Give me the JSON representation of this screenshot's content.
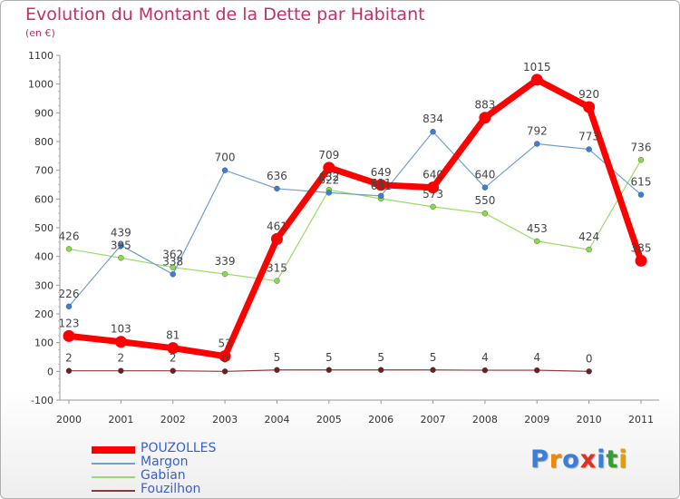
{
  "header": {
    "title": "Evolution du Montant de la Dette par Habitant",
    "subtitle": "(en €)"
  },
  "logo": {
    "text": "Proxiti",
    "colors": [
      "#3a7fd5",
      "#f08a00",
      "#3a7fd5",
      "#e03020",
      "#3a7fd5",
      "#30a030",
      "#e0a000"
    ]
  },
  "chart_data": {
    "type": "line",
    "x": [
      "2000",
      "2001",
      "2002",
      "2003",
      "2004",
      "2005",
      "2006",
      "2007",
      "2008",
      "2009",
      "2010",
      "2011"
    ],
    "ylim": [
      -100,
      1100
    ],
    "yticks": [
      "-100",
      "0",
      "100",
      "200",
      "300",
      "400",
      "500",
      "600",
      "700",
      "800",
      "900",
      "1000",
      "1100"
    ],
    "grid": false,
    "legend_position": "bottom-left",
    "series": [
      {
        "name": "POUZOLLES",
        "color": "#ff0000",
        "width": 7,
        "values": [
          123,
          103,
          81,
          53,
          461,
          709,
          649,
          640,
          883,
          1015,
          920,
          385
        ],
        "labels": [
          "123",
          "103",
          "81",
          "53",
          "461",
          "709",
          "649",
          "640",
          "883",
          "1015",
          "920",
          "385"
        ]
      },
      {
        "name": "Margon",
        "color": "#6fa0d0",
        "width": 1.2,
        "values": [
          226,
          439,
          338,
          700,
          636,
          622,
          611,
          834,
          640,
          792,
          773,
          615
        ],
        "labels": [
          "226",
          "439",
          "338",
          "700",
          "636",
          "622",
          "611",
          "834",
          "640",
          "792",
          "773",
          "615"
        ]
      },
      {
        "name": "Gabian",
        "color": "#99dd66",
        "width": 1.2,
        "values": [
          426,
          395,
          362,
          339,
          315,
          632,
          601,
          573,
          550,
          453,
          424,
          736
        ],
        "labels": [
          "426",
          "395",
          "362",
          "339",
          "315",
          "632",
          "601",
          "573",
          "550",
          "453",
          "424",
          "736"
        ]
      },
      {
        "name": "Fouzilhon",
        "color": "#8b3a3a",
        "width": 1.2,
        "values": [
          2,
          2,
          2,
          0,
          5,
          5,
          5,
          5,
          4,
          4,
          0,
          null
        ],
        "labels": [
          "2",
          "2",
          "2",
          "0",
          "5",
          "5",
          "5",
          "5",
          "4",
          "4",
          "0",
          ""
        ]
      }
    ]
  }
}
